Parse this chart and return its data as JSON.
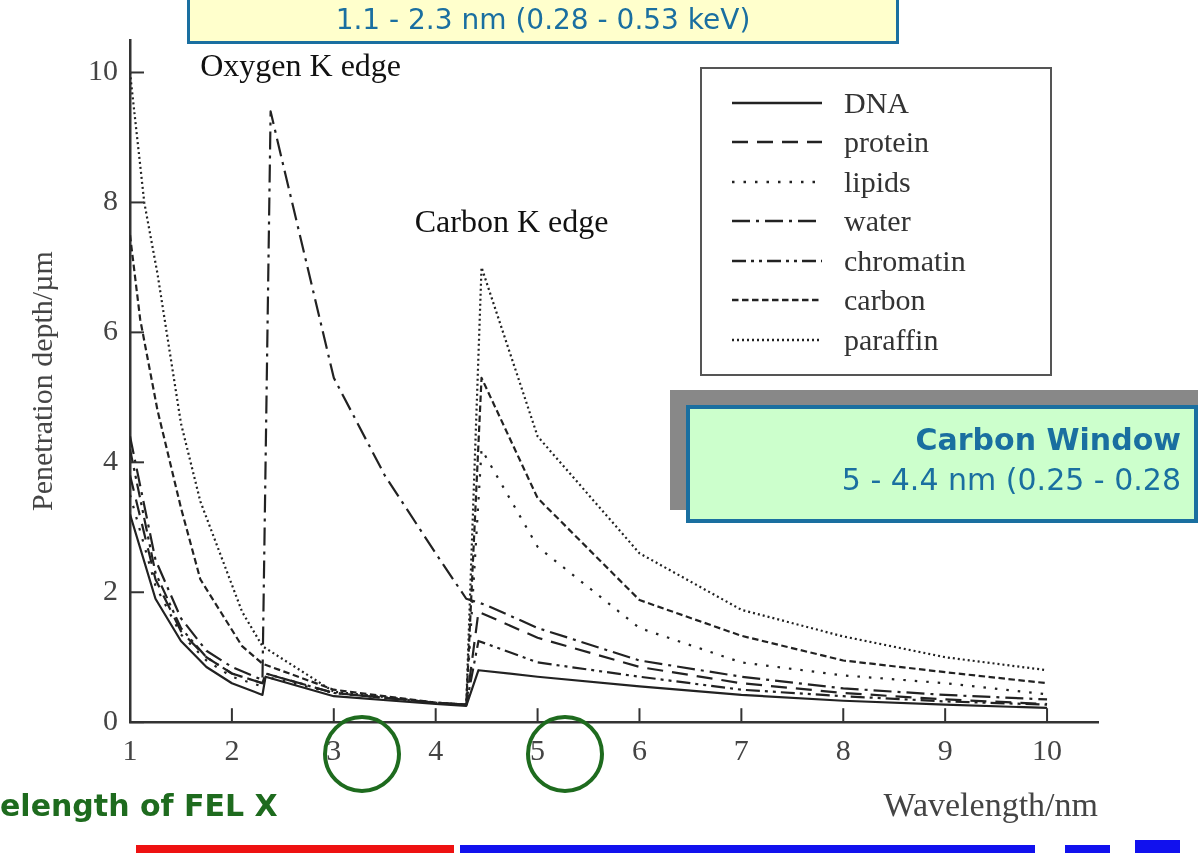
{
  "chart_data": {
    "type": "line",
    "xlabel": "Wavelength/nm",
    "ylabel": "Penetration depth/µm",
    "xlim": [
      1,
      10.5
    ],
    "xticks": [
      1,
      2,
      3,
      4,
      5,
      6,
      7,
      8,
      9,
      10
    ],
    "ylim": [
      0,
      10.5
    ],
    "yticks": [
      0,
      2,
      4,
      6,
      8,
      10
    ],
    "grid": false,
    "legend": "top right",
    "marker": "none",
    "series": [
      {
        "name": "DNA",
        "color": "#222222",
        "line_style": "solid",
        "x": [
          1,
          1.25,
          1.5,
          1.75,
          2,
          2.3,
          2.33,
          3,
          4,
          4.3,
          4.42,
          5,
          6,
          7,
          8,
          9,
          10
        ],
        "values": [
          3.2,
          1.9,
          1.25,
          0.85,
          0.6,
          0.42,
          0.7,
          0.4,
          0.28,
          0.25,
          0.8,
          0.7,
          0.55,
          0.42,
          0.33,
          0.27,
          0.22
        ]
      },
      {
        "name": "protein",
        "color": "#222222",
        "line_style": "dashed",
        "x": [
          1,
          1.25,
          1.5,
          1.75,
          2,
          2.3,
          2.33,
          3,
          4,
          4.3,
          4.42,
          5,
          6,
          7,
          8,
          9,
          10
        ],
        "values": [
          3.8,
          2.2,
          1.4,
          1.0,
          0.75,
          0.6,
          0.75,
          0.45,
          0.3,
          0.27,
          1.7,
          1.3,
          0.85,
          0.6,
          0.45,
          0.35,
          0.28
        ]
      },
      {
        "name": "lipids",
        "color": "#222222",
        "line_style": "dotted",
        "x": [
          1,
          1.25,
          1.5,
          1.75,
          2,
          2.3,
          2.33,
          3,
          4,
          4.3,
          4.45,
          5,
          6,
          7,
          8,
          9,
          10
        ],
        "values": [
          3.5,
          2.1,
          1.35,
          0.95,
          0.7,
          0.55,
          0.7,
          0.45,
          0.3,
          0.27,
          4.2,
          2.7,
          1.45,
          0.92,
          0.72,
          0.6,
          0.43
        ]
      },
      {
        "name": "water",
        "color": "#222222",
        "line_style": "dashdot",
        "x": [
          1,
          1.25,
          1.5,
          1.75,
          2,
          2.3,
          2.38,
          2.5,
          3,
          3.5,
          4,
          4.3,
          4.5,
          5,
          6,
          7,
          8,
          9,
          10
        ],
        "values": [
          4.4,
          2.5,
          1.6,
          1.1,
          0.85,
          0.65,
          9.4,
          8.6,
          5.3,
          3.8,
          2.6,
          1.9,
          1.8,
          1.45,
          0.95,
          0.7,
          0.52,
          0.42,
          0.35
        ]
      },
      {
        "name": "chromatin",
        "color": "#222222",
        "line_style": "dashdotdot",
        "x": [
          1,
          1.25,
          1.5,
          1.75,
          2,
          2.3,
          2.33,
          3,
          4,
          4.3,
          4.42,
          5,
          6,
          7,
          8,
          9,
          10
        ],
        "values": [
          4.2,
          2.3,
          1.45,
          1.0,
          0.75,
          0.6,
          0.75,
          0.45,
          0.3,
          0.27,
          1.25,
          0.92,
          0.7,
          0.5,
          0.4,
          0.32,
          0.27
        ]
      },
      {
        "name": "carbon",
        "color": "#222222",
        "line_style": "shortdash",
        "x": [
          1,
          1.1,
          1.27,
          1.5,
          1.69,
          2.1,
          2.3,
          3,
          4,
          4.3,
          4.45,
          5,
          6,
          7,
          8,
          9,
          10
        ],
        "values": [
          7.5,
          6.2,
          4.8,
          3.3,
          2.2,
          1.17,
          0.9,
          0.5,
          0.3,
          0.27,
          5.3,
          3.45,
          1.88,
          1.33,
          0.95,
          0.77,
          0.6
        ]
      },
      {
        "name": "paraffin",
        "color": "#222222",
        "line_style": "densedot",
        "x": [
          1,
          1.14,
          1.27,
          1.5,
          1.69,
          2.1,
          2.3,
          3,
          4,
          4.3,
          4.45,
          5,
          6,
          7,
          8,
          9,
          10
        ],
        "values": [
          10,
          8.0,
          6.9,
          4.6,
          3.4,
          1.7,
          1.17,
          0.47,
          0.3,
          0.27,
          7.0,
          4.4,
          2.6,
          1.73,
          1.32,
          1.0,
          0.8
        ]
      }
    ],
    "annotations": [
      {
        "text": "Oxygen K edge",
        "x": 2.38,
        "y": 9.4
      },
      {
        "text": "Carbon K edge",
        "x": 4.45,
        "y": 7.0
      },
      "1.1 - 2.3 nm (0.28 - 0.53 keV)",
      "Carbon Window",
      "5 - 4.4 nm (0.25 - 0.28",
      "elength of FEL X"
    ]
  }
}
